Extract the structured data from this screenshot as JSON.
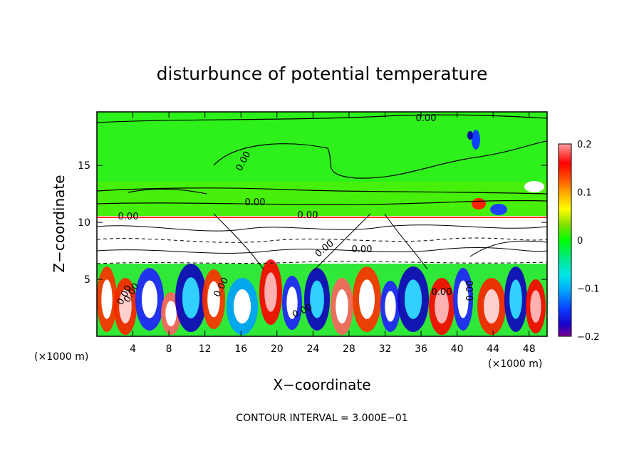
{
  "chart_data": {
    "type": "heatmap",
    "title": "disturbunce of potential temperature",
    "xlabel": "X−coordinate",
    "ylabel": "Z−coordinate",
    "x_unit": "(×1000 m)",
    "y_unit": "(×1000 m)",
    "x_ticks": [
      4,
      8,
      12,
      16,
      20,
      24,
      28,
      32,
      36,
      40,
      44,
      48
    ],
    "y_ticks": [
      5,
      10,
      15
    ],
    "xlim": [
      0,
      50
    ],
    "ylim": [
      0,
      19.7
    ],
    "colorbar": {
      "ticks": [
        "0.2",
        "0.1",
        "0",
        "−0.1",
        "−0.2"
      ],
      "range": [
        -0.2,
        0.2
      ]
    },
    "contour_labels": [
      "0.00",
      "0.00",
      "0.00",
      "0.00",
      "0.00",
      "0.00",
      "0.00",
      "0.00",
      "0.00",
      "0.00",
      "0.00",
      "0.00",
      "0.00"
    ],
    "footer": "CONTOUR INTERVAL = 3.000E−01",
    "features": {
      "tropopause_height": 10.6,
      "upper_layer_value": 0.0,
      "lower_layer": "convective cells with strong positive and negative anomalies"
    }
  }
}
